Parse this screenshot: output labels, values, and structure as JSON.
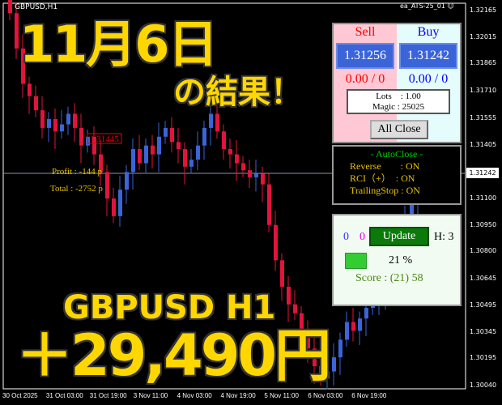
{
  "chart": {
    "symbol": "GBPUSD,H1",
    "ea_name": "ea_ATS-25_01",
    "ea_icon": "smiley-icon",
    "current_price": "1.31242",
    "marker_price": "1.31445",
    "profit": "Profit : -144 p",
    "total": "Total : -2752 p",
    "up_color": "#3a64d8",
    "down_color": "#e0143c",
    "price_axis": [
      "1.32165",
      "1.32015",
      "1.31865",
      "1.31710",
      "1.31555",
      "1.31405",
      "1.31100",
      "1.30950",
      "1.30800",
      "1.30645",
      "1.30495",
      "1.30345",
      "1.30195",
      "1.30040"
    ],
    "time_axis": [
      "30 Oct 2025",
      "31 Oct 03:00",
      "31 Oct 19:00",
      "3 Nov 11:00",
      "4 Nov 03:00",
      "4 Nov 19:00",
      "5 Nov 11:00",
      "6 Nov 03:00",
      "6 Nov 19:00"
    ]
  },
  "chart_data": {
    "type": "candlestick",
    "ylim": [
      1.3004,
      1.32165
    ],
    "closes": [
      1.3215,
      1.3195,
      1.3175,
      1.3168,
      1.316,
      1.315,
      1.3155,
      1.3148,
      1.3152,
      1.3158,
      1.315,
      1.314,
      1.3145,
      1.3135,
      1.3125,
      1.311,
      1.31,
      1.3115,
      1.3125,
      1.3138,
      1.313,
      1.314,
      1.3135,
      1.3145,
      1.315,
      1.3142,
      1.3138,
      1.3128,
      1.3132,
      1.314,
      1.315,
      1.3158,
      1.3148,
      1.3138,
      1.3135,
      1.313,
      1.3126,
      1.3122,
      1.3124,
      1.3118,
      1.3095,
      1.3075,
      1.306,
      1.305,
      1.3045,
      1.3035,
      1.3025,
      1.3015,
      1.3008,
      1.3012,
      1.302,
      1.303,
      1.304,
      1.3035,
      1.3042,
      1.3048,
      1.305,
      1.3055,
      1.307,
      1.3085,
      1.3095,
      1.31,
      1.311,
      1.3124
    ]
  },
  "overlay": {
    "date": "11月6日",
    "result": "の結果！",
    "pair": "GBPUSD H1",
    "profit": "＋29,490円"
  },
  "trade_panel": {
    "sell_label": "Sell",
    "buy_label": "Buy",
    "sell_price": "1.31256",
    "buy_price": "1.31242",
    "sell_pl": "0.00 / 0",
    "buy_pl": "0.00 / 0",
    "lots": "Lots　: 1.00",
    "magic": "Magic : 25025",
    "all_close": "All Close"
  },
  "autoclose": {
    "title": "- AutoClose -",
    "rows": [
      "Reverse　　: ON",
      "RCI（+）　: ON",
      "TrailingStop : ON"
    ]
  },
  "status_panel": {
    "count_blue": "0",
    "count_magenta": "0",
    "update": "Update",
    "h": "H: 3",
    "percent": "21 %",
    "progress": 0.21,
    "score": "Score : (21) 58"
  }
}
